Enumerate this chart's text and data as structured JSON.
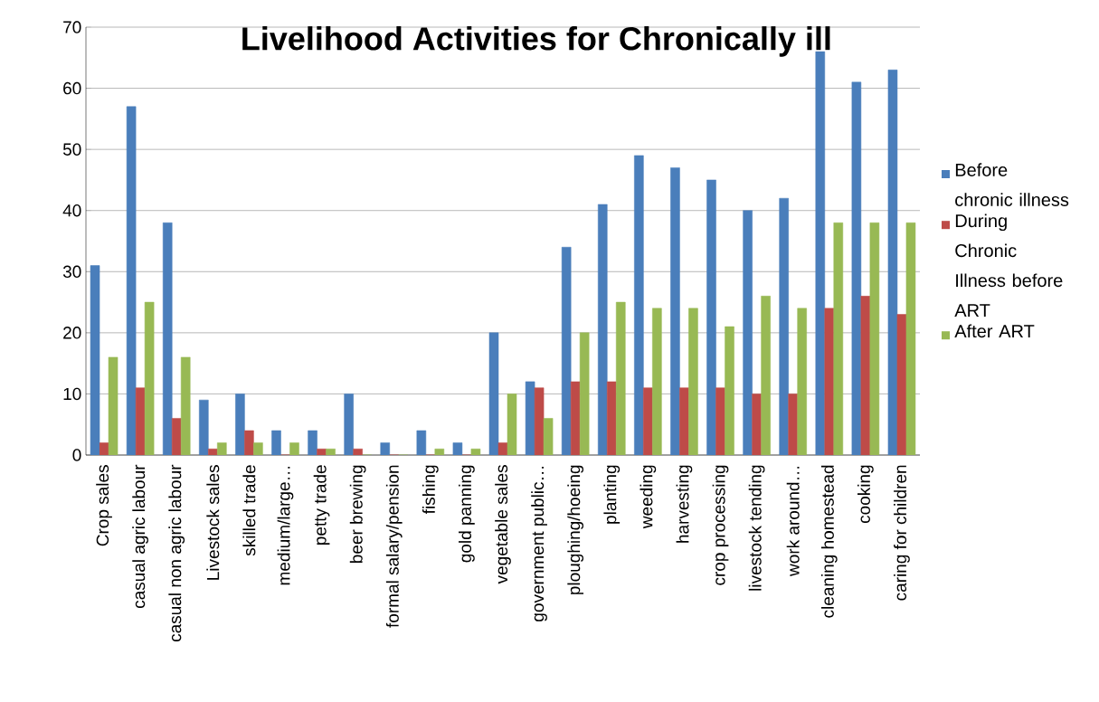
{
  "chart_data": {
    "type": "bar",
    "title": "Livelihood Activities for Chronically ill",
    "categories": [
      "Crop sales",
      "casual agric labour",
      "casual non agric labour",
      "Livestock sales",
      "skilled trade",
      "medium/large…",
      "petty trade",
      "beer brewing",
      "formal salary/pension",
      "fishing",
      "gold panning",
      "vegetable sales",
      "government public…",
      "ploughing/hoeing",
      "planting",
      "weeding",
      "harvesting",
      "crop processing",
      "livestock tending",
      "work around…",
      "cleaning homestead",
      "cooking",
      "caring for children"
    ],
    "series": [
      {
        "name": "Before chronic illness",
        "color": "#4a7ebb",
        "values": [
          31,
          57,
          38,
          9,
          10,
          4,
          4,
          10,
          2,
          4,
          2,
          20,
          12,
          34,
          41,
          49,
          47,
          45,
          40,
          42,
          66,
          61,
          63
        ]
      },
      {
        "name": "During Chronic Illness before ART",
        "color": "#be4b48",
        "values": [
          2,
          11,
          6,
          1,
          4,
          0,
          1,
          1,
          0,
          0,
          0,
          2,
          11,
          12,
          12,
          11,
          11,
          11,
          10,
          10,
          24,
          26,
          23
        ]
      },
      {
        "name": "After ART",
        "color": "#98b954",
        "values": [
          16,
          25,
          16,
          2,
          2,
          2,
          1,
          0,
          0,
          1,
          1,
          10,
          6,
          20,
          25,
          24,
          24,
          21,
          26,
          24,
          38,
          38,
          38
        ]
      }
    ],
    "ylim": [
      0,
      70
    ],
    "yticks": [
      0,
      10,
      20,
      30,
      40,
      50,
      60,
      70
    ],
    "grid": "y",
    "legend": "right"
  }
}
